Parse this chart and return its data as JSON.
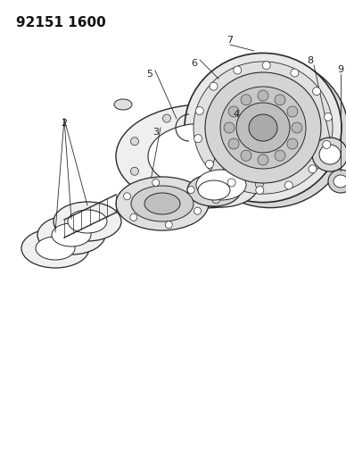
{
  "title": "92151 1600",
  "background_color": "#ffffff",
  "line_color": "#2a2a2a",
  "label_color": "#222222",
  "figsize": [
    3.88,
    5.33
  ],
  "dpi": 100,
  "title_fontsize": 11,
  "label_fontsize": 8
}
